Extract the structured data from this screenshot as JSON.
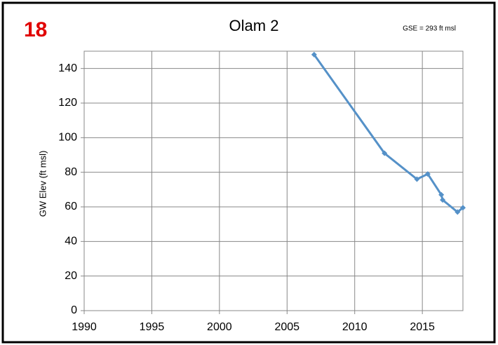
{
  "chart_data": {
    "type": "line",
    "panel_label": "18",
    "title": "Olam 2",
    "annotation": "GSE = 293 ft msl",
    "y_label": "GW Elev (ft msl)",
    "series": [
      {
        "name": "GW Elev",
        "color": "#5591c8",
        "x": [
          2007,
          2012.2,
          2014.6,
          2015.4,
          2016.4,
          2016.5,
          2017.6,
          2018
        ],
        "values": [
          148,
          91,
          76,
          79,
          67,
          64,
          57,
          59.5
        ]
      }
    ],
    "xlim": [
      1990,
      2018
    ],
    "xticks": [
      1990,
      1995,
      2000,
      2005,
      2010,
      2015
    ],
    "ylim": [
      0,
      150
    ],
    "yticks": [
      0,
      20,
      40,
      60,
      80,
      100,
      120,
      140
    ],
    "grid": true
  }
}
